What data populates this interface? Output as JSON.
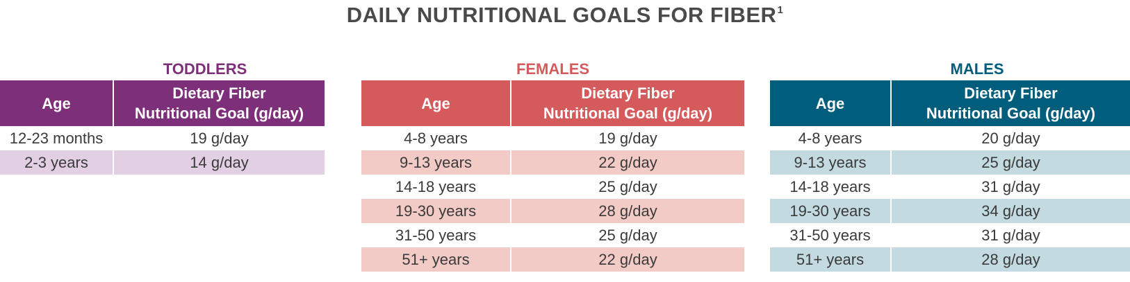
{
  "title": "DAILY NUTRITIONAL GOALS FOR FIBER",
  "title_footnote": "1",
  "header": {
    "age": "Age",
    "goal_line1": "Dietary Fiber",
    "goal_line2": "Nutritional Goal (g/day)"
  },
  "groups": [
    {
      "name": "TODDLERS",
      "rows": [
        {
          "age": "12-23 months",
          "goal": "19 g/day"
        },
        {
          "age": "2-3 years",
          "goal": "14 g/day"
        }
      ]
    },
    {
      "name": "FEMALES",
      "rows": [
        {
          "age": "4-8 years",
          "goal": "19 g/day"
        },
        {
          "age": "9-13 years",
          "goal": "22 g/day"
        },
        {
          "age": "14-18 years",
          "goal": "25 g/day"
        },
        {
          "age": "19-30 years",
          "goal": "28 g/day"
        },
        {
          "age": "31-50 years",
          "goal": "25 g/day"
        },
        {
          "age": "51+ years",
          "goal": "22 g/day"
        }
      ]
    },
    {
      "name": "MALES",
      "rows": [
        {
          "age": "4-8 years",
          "goal": "20 g/day"
        },
        {
          "age": "9-13 years",
          "goal": "25 g/day"
        },
        {
          "age": "14-18 years",
          "goal": "31 g/day"
        },
        {
          "age": "19-30 years",
          "goal": "34 g/day"
        },
        {
          "age": "31-50 years",
          "goal": "31 g/day"
        },
        {
          "age": "51+ years",
          "goal": "28 g/day"
        }
      ]
    }
  ],
  "colors": {
    "toddlers": "#7d2f7a",
    "toddlers_alt": "#e3cfe3",
    "females": "#d55a5c",
    "females_alt": "#f3cbc6",
    "males": "#005d7c",
    "males_alt": "#c2dae0"
  }
}
